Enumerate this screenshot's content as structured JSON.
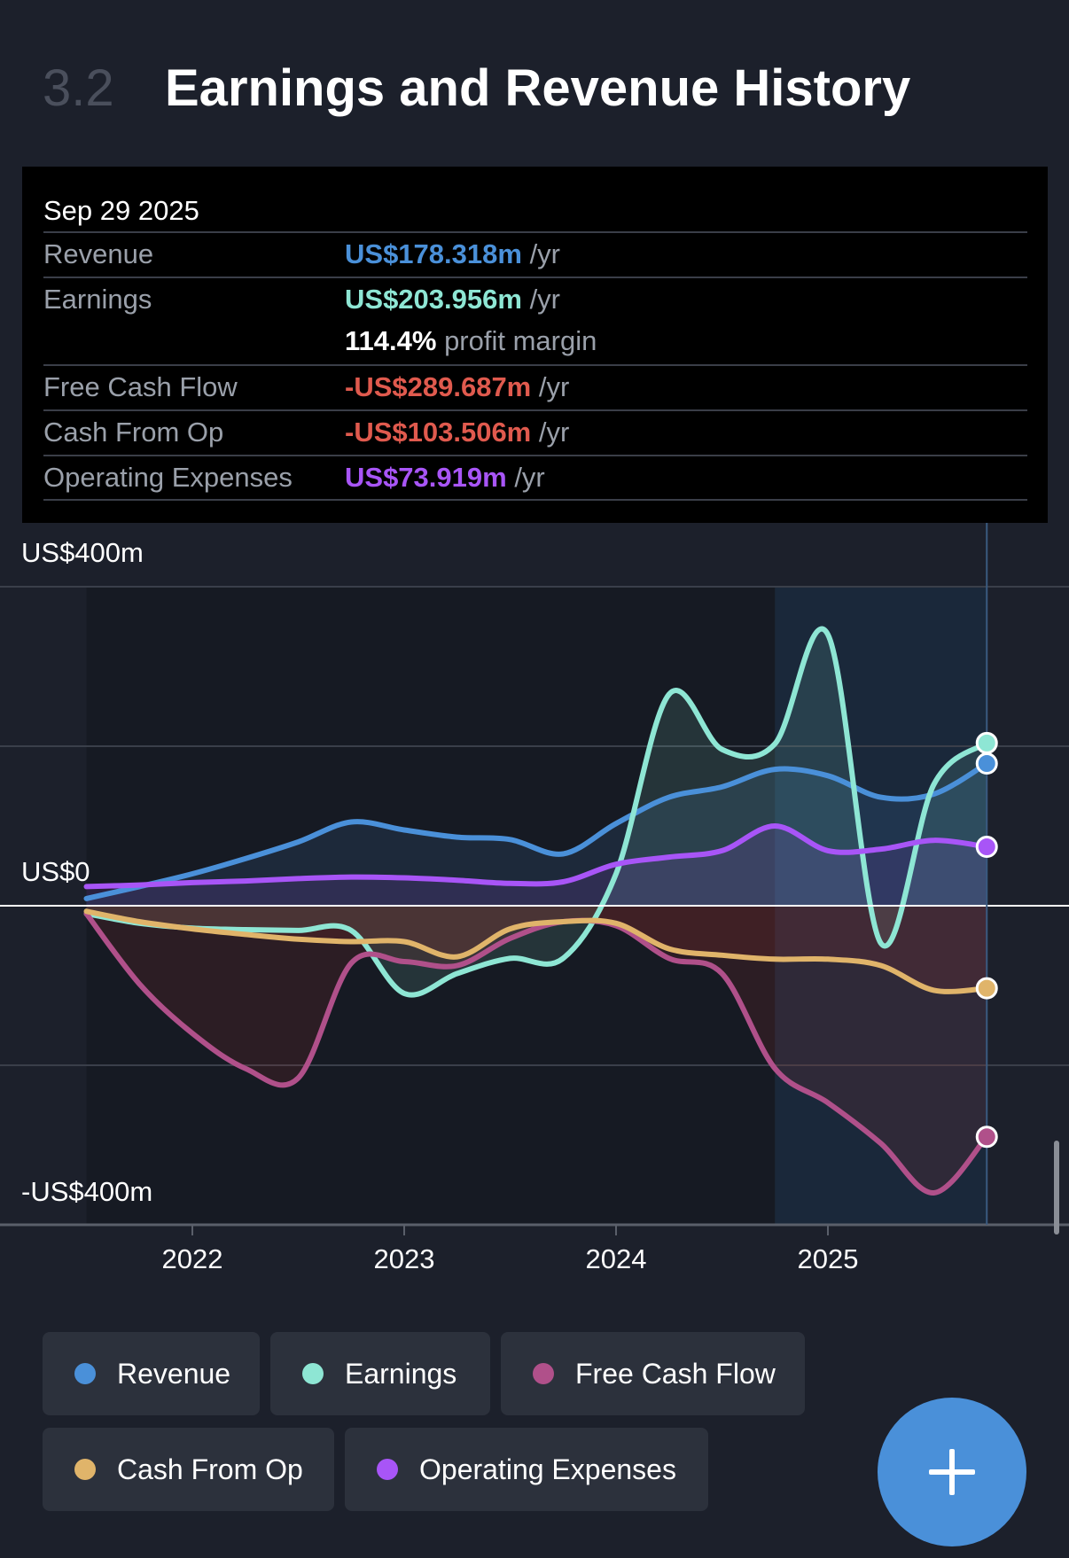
{
  "header": {
    "section_number": "3.2",
    "title": "Earnings and Revenue History"
  },
  "tooltip": {
    "date": "Sep 29 2025",
    "rows": [
      {
        "label": "Revenue",
        "value": "US$178.318m",
        "unit": "/yr",
        "color": "#4a90d9"
      },
      {
        "label": "Earnings",
        "value": "US$203.956m",
        "unit": "/yr",
        "color": "#8ee6d4",
        "margin_value": "114.4%",
        "margin_label": "profit margin"
      },
      {
        "label": "Free Cash Flow",
        "value": "-US$289.687m",
        "unit": "/yr",
        "color": "#e05a4e"
      },
      {
        "label": "Cash From Op",
        "value": "-US$103.506m",
        "unit": "/yr",
        "color": "#e05a4e"
      },
      {
        "label": "Operating Expenses",
        "value": "US$73.919m",
        "unit": "/yr",
        "color": "#a855f7"
      }
    ]
  },
  "chart_data": {
    "type": "line",
    "title": "Earnings and Revenue History",
    "y_tick_labels": [
      "US$400m",
      "US$0",
      "-US$400m"
    ],
    "ylim": [
      -400,
      400
    ],
    "x_tick_labels": [
      "2022",
      "2023",
      "2024",
      "2025"
    ],
    "x": [
      2021.5,
      2021.75,
      2022,
      2022.25,
      2022.5,
      2022.75,
      2023,
      2023.25,
      2023.5,
      2023.75,
      2024,
      2024.25,
      2024.5,
      2024.75,
      2025,
      2025.25,
      2025.5,
      2025.75
    ],
    "highlight_from": 2024.75,
    "series": [
      {
        "name": "Revenue",
        "color": "#4a90d9",
        "values": [
          9,
          24,
          40,
          59,
          80,
          105,
          95,
          86,
          83,
          65,
          103,
          136,
          149,
          171,
          163,
          136,
          140,
          178.3
        ]
      },
      {
        "name": "Earnings",
        "color": "#8ee6d4",
        "values": [
          -10,
          -22,
          -28,
          -30,
          -31,
          -31,
          -110,
          -85,
          -66,
          -66,
          40,
          265,
          196,
          203,
          340,
          -47,
          152,
          204
        ]
      },
      {
        "name": "Free Cash Flow",
        "color": "#b0508a",
        "values": [
          -10,
          -98,
          -160,
          -204,
          -216,
          -72,
          -70,
          -75,
          -41,
          -20,
          -25,
          -66,
          -85,
          -204,
          -247,
          -298,
          -360,
          -289.7
        ]
      },
      {
        "name": "Cash From Op",
        "color": "#e0b46a",
        "values": [
          -7,
          -20,
          -29,
          -36,
          -42,
          -45,
          -45,
          -64,
          -29,
          -20,
          -22,
          -54,
          -62,
          -67,
          -67,
          -75,
          -106,
          -103.5
        ]
      },
      {
        "name": "Operating Expenses",
        "color": "#a855f7",
        "values": [
          24,
          26,
          29,
          31,
          34,
          36,
          35,
          32,
          28,
          30,
          52,
          61,
          69,
          100,
          69,
          71,
          82,
          73.9
        ]
      }
    ]
  },
  "legend": [
    {
      "label": "Revenue",
      "color": "#4a90d9"
    },
    {
      "label": "Earnings",
      "color": "#8ee6d4"
    },
    {
      "label": "Free Cash Flow",
      "color": "#b0508a"
    },
    {
      "label": "Cash From Op",
      "color": "#e0b46a"
    },
    {
      "label": "Operating Expenses",
      "color": "#a855f7"
    }
  ],
  "fab": {
    "icon": "plus-icon"
  }
}
